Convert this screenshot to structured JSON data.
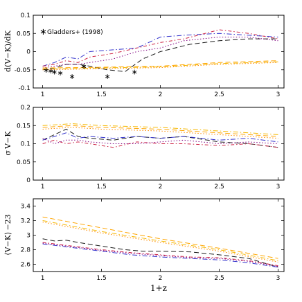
{
  "chart_data": [
    {
      "type": "line",
      "id": "top",
      "ylabel": "d(V−K)/dK",
      "xlim": [
        0.92,
        3.05
      ],
      "ylim": [
        -0.1,
        0.1
      ],
      "xticks": [
        1,
        1.5,
        2,
        2.5,
        3
      ],
      "xtick_labels": [
        "1",
        "1.5",
        "2",
        "2.5",
        "3"
      ],
      "yticks": [
        -0.1,
        -0.05,
        0,
        0.05,
        0.1
      ],
      "ytick_labels": [
        "-0.1",
        "-0.05",
        "0",
        "0.05",
        "0.1"
      ],
      "legend": {
        "marker": "∗",
        "label": "Gladders+ (1998)",
        "position": "top-left"
      },
      "series": [
        {
          "color": "#1a1a1a",
          "dash": "7,4",
          "x": [
            1,
            1.1,
            1.2,
            1.3,
            1.4,
            1.55,
            1.7,
            1.85,
            2.0,
            2.25,
            2.5,
            2.75,
            3.0
          ],
          "y": [
            -0.05,
            -0.045,
            -0.035,
            -0.035,
            -0.04,
            -0.05,
            -0.055,
            -0.02,
            0.0,
            0.02,
            0.03,
            0.035,
            0.035
          ]
        },
        {
          "color": "#3333cc",
          "dash": "7,3,1.5,3",
          "x": [
            1,
            1.1,
            1.2,
            1.3,
            1.4,
            1.6,
            1.8,
            2.0,
            2.2,
            2.5,
            2.75,
            3.0
          ],
          "y": [
            -0.04,
            -0.03,
            -0.015,
            -0.02,
            0.0,
            0.005,
            0.01,
            0.04,
            0.045,
            0.05,
            0.045,
            0.04
          ]
        },
        {
          "color": "#cc2244",
          "dash": "5,3,1.5,3",
          "x": [
            1,
            1.1,
            1.2,
            1.3,
            1.4,
            1.6,
            1.8,
            2.0,
            2.2,
            2.5,
            2.75,
            3.0
          ],
          "y": [
            -0.04,
            -0.035,
            -0.025,
            -0.03,
            -0.015,
            -0.005,
            0.01,
            0.025,
            0.035,
            0.06,
            0.05,
            0.035
          ]
        },
        {
          "color": "#800080",
          "dash": "1.5,2.5",
          "x": [
            1,
            1.1,
            1.2,
            1.3,
            1.4,
            1.6,
            1.8,
            2.0,
            2.2,
            2.5,
            2.75,
            3.0
          ],
          "y": [
            -0.045,
            -0.04,
            -0.035,
            -0.035,
            -0.03,
            -0.02,
            0.0,
            0.01,
            0.03,
            0.04,
            0.04,
            0.03
          ]
        },
        {
          "color": "#ffa500",
          "dash": "7,4",
          "x": [
            1,
            1.5,
            2.0,
            2.5,
            3.0
          ],
          "y": [
            -0.045,
            -0.043,
            -0.04,
            -0.03,
            -0.025
          ]
        },
        {
          "color": "#f5b800",
          "dash": "7,3,1.5,3",
          "x": [
            1,
            1.5,
            2.0,
            2.5,
            3.0
          ],
          "y": [
            -0.048,
            -0.045,
            -0.042,
            -0.033,
            -0.028
          ]
        },
        {
          "color": "#ff8c00",
          "dash": "1.5,2.5",
          "x": [
            1,
            1.5,
            2.0,
            2.5,
            3.0
          ],
          "y": [
            -0.05,
            -0.047,
            -0.044,
            -0.035,
            -0.03
          ]
        }
      ],
      "scatter": {
        "name": "Gladders+ (1998)",
        "x": [
          1.03,
          1.07,
          1.1,
          1.15,
          1.25,
          1.35,
          1.55,
          1.78
        ],
        "y": [
          -0.05,
          -0.052,
          -0.055,
          -0.058,
          -0.068,
          -0.04,
          -0.068,
          -0.055
        ]
      }
    },
    {
      "type": "line",
      "id": "middle",
      "ylabel": "σ V−K",
      "xlim": [
        0.92,
        3.05
      ],
      "ylim": [
        0,
        0.2
      ],
      "xticks": [
        1,
        1.5,
        2,
        2.5,
        3
      ],
      "xtick_labels": [
        "1",
        "1.5",
        "2",
        "2.5",
        "3"
      ],
      "yticks": [
        0,
        0.05,
        0.1,
        0.15,
        0.2
      ],
      "ytick_labels": [
        "0",
        "0.05",
        "0.1",
        "0.15",
        "0.2"
      ],
      "series": [
        {
          "color": "#1a1a1a",
          "dash": "7,4",
          "x": [
            1,
            1.1,
            1.2,
            1.3,
            1.4,
            1.6,
            1.8,
            2.0,
            2.2,
            2.5,
            2.75,
            3.0
          ],
          "y": [
            0.11,
            0.125,
            0.14,
            0.12,
            0.115,
            0.11,
            0.12,
            0.115,
            0.12,
            0.105,
            0.1,
            0.09
          ]
        },
        {
          "color": "#3333cc",
          "dash": "7,3,1.5,3",
          "x": [
            1,
            1.1,
            1.2,
            1.3,
            1.4,
            1.6,
            1.8,
            2.0,
            2.2,
            2.5,
            2.75,
            3.0
          ],
          "y": [
            0.11,
            0.12,
            0.13,
            0.115,
            0.12,
            0.115,
            0.12,
            0.115,
            0.12,
            0.11,
            0.115,
            0.105
          ]
        },
        {
          "color": "#cc2244",
          "dash": "5,3,1.5,3",
          "x": [
            1,
            1.1,
            1.2,
            1.3,
            1.4,
            1.6,
            1.8,
            2.0,
            2.2,
            2.5,
            2.75,
            3.0
          ],
          "y": [
            0.1,
            0.11,
            0.1,
            0.105,
            0.1,
            0.09,
            0.105,
            0.1,
            0.1,
            0.095,
            0.1,
            0.09
          ]
        },
        {
          "color": "#800080",
          "dash": "1.5,2.5",
          "x": [
            1,
            1.1,
            1.2,
            1.3,
            1.4,
            1.6,
            1.8,
            2.0,
            2.2,
            2.5,
            2.75,
            3.0
          ],
          "y": [
            0.115,
            0.1,
            0.11,
            0.11,
            0.105,
            0.1,
            0.1,
            0.105,
            0.11,
            0.1,
            0.105,
            0.1
          ]
        },
        {
          "color": "#ffa500",
          "dash": "7,4",
          "x": [
            1,
            1.25,
            1.5,
            2.0,
            2.5,
            3.0
          ],
          "y": [
            0.145,
            0.15,
            0.145,
            0.14,
            0.13,
            0.12
          ]
        },
        {
          "color": "#f5b800",
          "dash": "7,3,1.5,3",
          "x": [
            1,
            1.25,
            1.5,
            2.0,
            2.5,
            3.0
          ],
          "y": [
            0.15,
            0.155,
            0.15,
            0.145,
            0.135,
            0.125
          ]
        },
        {
          "color": "#ff8c00",
          "dash": "1.5,2.5",
          "x": [
            1,
            1.25,
            1.5,
            2.0,
            2.5,
            3.0
          ],
          "y": [
            0.14,
            0.145,
            0.14,
            0.135,
            0.125,
            0.115
          ]
        }
      ]
    },
    {
      "type": "line",
      "id": "bottom",
      "ylabel": "⟨V−K⟩ −23",
      "xlabel": "1+z",
      "xlim": [
        0.92,
        3.05
      ],
      "ylim": [
        2.5,
        3.5
      ],
      "xticks": [
        1,
        1.5,
        2,
        2.5,
        3
      ],
      "xtick_labels": [
        "1",
        "1.5",
        "2",
        "2.5",
        "3"
      ],
      "yticks": [
        2.6,
        2.8,
        3,
        3.2,
        3.4
      ],
      "ytick_labels": [
        "2.6",
        "2.8",
        "3",
        "3.2",
        "3.4"
      ],
      "series": [
        {
          "color": "#1a1a1a",
          "dash": "7,4",
          "x": [
            1,
            1.1,
            1.2,
            1.3,
            1.5,
            1.7,
            1.85,
            2.0,
            2.25,
            2.5,
            2.75,
            3.0
          ],
          "y": [
            2.95,
            2.92,
            2.93,
            2.9,
            2.85,
            2.8,
            2.78,
            2.78,
            2.77,
            2.73,
            2.68,
            2.56
          ]
        },
        {
          "color": "#3333cc",
          "dash": "7,3,1.5,3",
          "x": [
            1,
            1.25,
            1.5,
            1.75,
            2.0,
            2.25,
            2.5,
            2.75,
            3.0
          ],
          "y": [
            2.88,
            2.83,
            2.78,
            2.73,
            2.7,
            2.68,
            2.66,
            2.62,
            2.56
          ]
        },
        {
          "color": "#cc2244",
          "dash": "5,3,1.5,3",
          "x": [
            1,
            1.25,
            1.5,
            1.75,
            2.0,
            2.25,
            2.5,
            2.75,
            3.0
          ],
          "y": [
            2.9,
            2.85,
            2.8,
            2.76,
            2.73,
            2.7,
            2.69,
            2.65,
            2.58
          ]
        },
        {
          "color": "#800080",
          "dash": "1.5,2.5",
          "x": [
            1,
            1.25,
            1.5,
            1.75,
            2.0,
            2.25,
            2.5,
            2.75,
            3.0
          ],
          "y": [
            2.89,
            2.84,
            2.79,
            2.75,
            2.72,
            2.69,
            2.68,
            2.64,
            2.57
          ]
        },
        {
          "color": "#ffa500",
          "dash": "7,4",
          "x": [
            1,
            1.5,
            2.0,
            2.5,
            3.0
          ],
          "y": [
            3.25,
            3.1,
            2.95,
            2.82,
            2.68
          ]
        },
        {
          "color": "#f5b800",
          "dash": "7,3,1.5,3",
          "x": [
            1,
            1.5,
            2.0,
            2.5,
            3.0
          ],
          "y": [
            3.2,
            3.05,
            2.92,
            2.8,
            2.65
          ]
        },
        {
          "color": "#ff8c00",
          "dash": "1.5,2.5",
          "x": [
            1,
            1.5,
            2.0,
            2.5,
            3.0
          ],
          "y": [
            3.18,
            3.03,
            2.9,
            2.78,
            2.63
          ]
        }
      ]
    }
  ]
}
